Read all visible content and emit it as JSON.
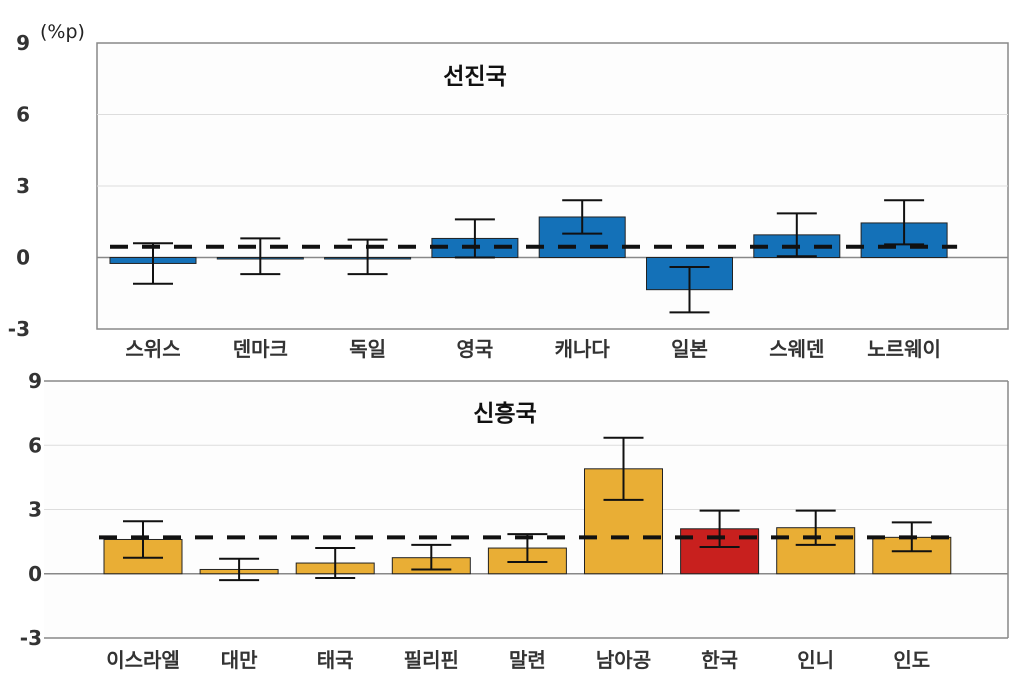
{
  "chart_data": [
    {
      "type": "bar",
      "title": "선진국",
      "unit_label": "(%p)",
      "ylim": [
        -3,
        9
      ],
      "yticks": [
        -3,
        0,
        3,
        6,
        9
      ],
      "grid": true,
      "categories": [
        "스위스",
        "덴마크",
        "독일",
        "영국",
        "캐나다",
        "일본",
        "스웨덴",
        "노르웨이"
      ],
      "values": [
        -0.25,
        0.0,
        0.0,
        0.8,
        1.7,
        -1.35,
        0.95,
        1.45
      ],
      "error_low": [
        -1.1,
        -0.7,
        -0.7,
        0.0,
        1.0,
        -2.3,
        0.05,
        0.55
      ],
      "error_high": [
        0.6,
        0.8,
        0.75,
        1.6,
        2.4,
        -0.4,
        1.85,
        2.4
      ],
      "reference_line": 0.45,
      "colors": {
        "bar": "#1471b8",
        "highlight": "#1471b8"
      },
      "highlight": []
    },
    {
      "type": "bar",
      "title": "신흥국",
      "ylim": [
        -3,
        9
      ],
      "yticks": [
        -3,
        0,
        3,
        6,
        9
      ],
      "grid": true,
      "categories": [
        "이스라엘",
        "대만",
        "태국",
        "필리핀",
        "말련",
        "남아공",
        "한국",
        "인니",
        "인도"
      ],
      "values": [
        1.6,
        0.2,
        0.5,
        0.75,
        1.2,
        4.9,
        2.1,
        2.15,
        1.7
      ],
      "error_low": [
        0.75,
        -0.3,
        -0.2,
        0.2,
        0.55,
        3.45,
        1.25,
        1.35,
        1.05
      ],
      "error_high": [
        2.45,
        0.7,
        1.2,
        1.35,
        1.85,
        6.35,
        2.95,
        2.95,
        2.4
      ],
      "reference_line": 1.7,
      "colors": {
        "bar": "#e9ae35",
        "highlight": "#c8201e"
      },
      "highlight": [
        "한국"
      ]
    }
  ]
}
